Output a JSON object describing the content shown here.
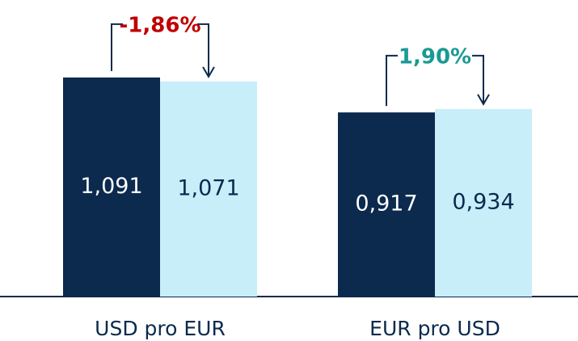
{
  "chart_data": {
    "type": "bar",
    "categories": [
      "USD pro EUR",
      "EUR pro USD"
    ],
    "series": [
      {
        "color": "#0b2a4e",
        "label_color": "#ffffff",
        "values": [
          1.091,
          0.917
        ],
        "value_labels": [
          "1,091",
          "0,917"
        ]
      },
      {
        "color": "#c8eefa",
        "label_color": "#0b2a4e",
        "values": [
          1.071,
          0.934
        ],
        "value_labels": [
          "1,071",
          "0,934"
        ]
      }
    ],
    "annotations": [
      {
        "text": "-1,86%",
        "color": "#c00000"
      },
      {
        "text": "1,90%",
        "color": "#1a9a94"
      }
    ]
  }
}
